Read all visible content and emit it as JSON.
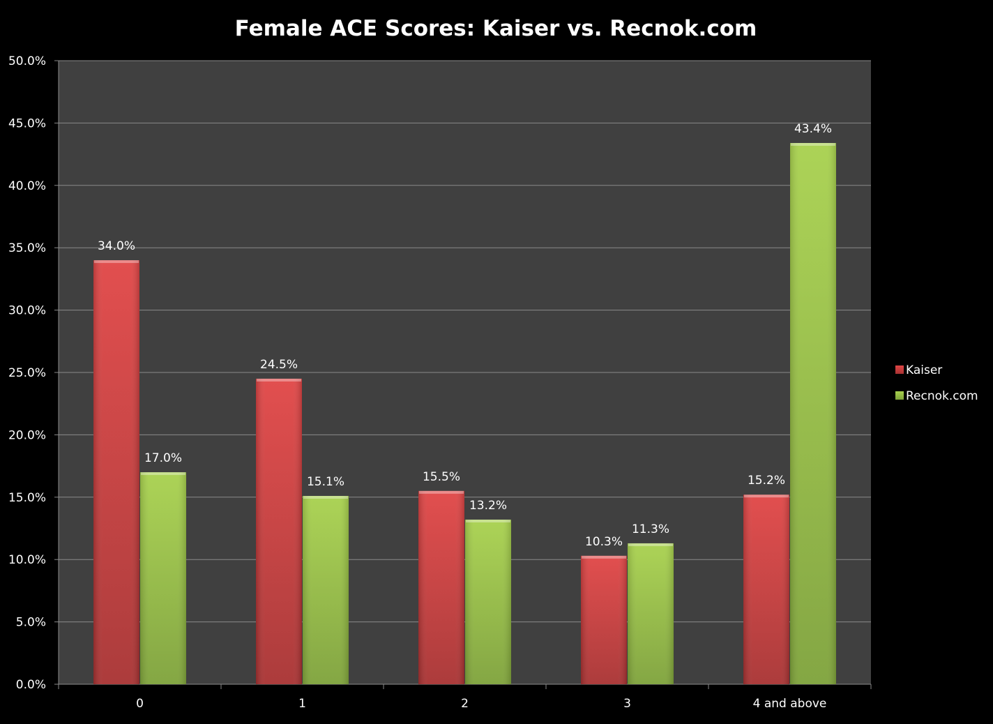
{
  "chart_data": {
    "type": "bar",
    "title": "Female ACE Scores: Kaiser vs. Recnok.com",
    "xlabel": "",
    "ylabel": "",
    "categories": [
      "0",
      "1",
      "2",
      "3",
      "4 and above"
    ],
    "series": [
      {
        "name": "Kaiser",
        "values": [
          34.0,
          24.5,
          15.5,
          10.3,
          15.2
        ],
        "labels": [
          "34.0%",
          "24.5%",
          "15.5%",
          "10.3%",
          "15.2%"
        ],
        "color": "#d94040"
      },
      {
        "name": "Recnok.com",
        "values": [
          17.0,
          15.1,
          13.2,
          11.3,
          43.4
        ],
        "labels": [
          "17.0%",
          "15.1%",
          "13.2%",
          "11.3%",
          "43.4%"
        ],
        "color": "#9ec948"
      }
    ],
    "ylim": [
      0,
      50
    ],
    "yticks": [
      0,
      5,
      10,
      15,
      20,
      25,
      30,
      35,
      40,
      45,
      50
    ],
    "ytick_labels": [
      "0.0%",
      "5.0%",
      "10.0%",
      "15.0%",
      "20.0%",
      "25.0%",
      "30.0%",
      "35.0%",
      "40.0%",
      "45.0%",
      "50.0%"
    ],
    "grid": true,
    "legend_position": "right",
    "background_color": "#000000",
    "plot_area_color": "#404040",
    "gridline_color": "#8a8a8a"
  }
}
